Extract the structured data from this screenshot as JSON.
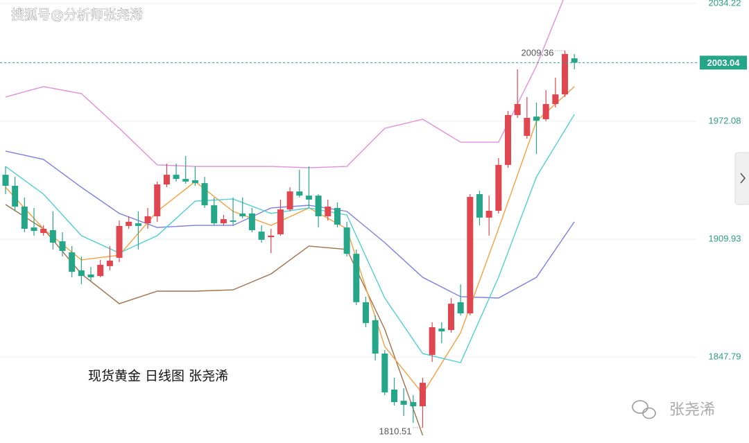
{
  "watermark": "搜狐号@分析师张尧浠",
  "brand": "张尧浠",
  "chart_data": {
    "type": "candlestick",
    "title": "现货黄金 日线图 张尧浠",
    "up_color": "#e0464f",
    "down_color": "#26a688",
    "tick_color": "#2f9c82",
    "top_tick_color": "#e0464f",
    "grid": true,
    "ylim": [
      1802.43,
      2036.07
    ],
    "yticks": [
      1847.79,
      1909.93,
      1972.08,
      2034.22
    ],
    "open": [
      1943.9,
      1938.1,
      1927.1,
      1916.1,
      1913.2,
      1914.7,
      1908.8,
      1903.0,
      1893.5,
      1891.3,
      1890.5,
      1895.7,
      1900.1,
      1916.9,
      1918.3,
      1918.3,
      1922.0,
      1938.8,
      1943.9,
      1941.7,
      1941.0,
      1939.5,
      1927.8,
      1918.3,
      1919.8,
      1923.5,
      1923.5,
      1913.9,
      1911.0,
      1912.5,
      1925.6,
      1935.1,
      1932.9,
      1932.9,
      1922.0,
      1926.4,
      1916.1,
      1902.2,
      1876.7,
      1867.2,
      1849.6,
      1830.6,
      1824.7,
      1824.0,
      1821.8,
      1848.9,
      1862.8,
      1862.0,
      1876.7,
      1870.8,
      1933.7,
      1921.3,
      1924.9,
      1949.1,
      1975.4,
      1964.4,
      1974.6,
      1973.2,
      1981.2,
      1986.3,
      2005.3
    ],
    "high": [
      1948.3,
      1942.8,
      1931.9,
      1926.4,
      1917.2,
      1924.6,
      1913.6,
      1906.3,
      1900.8,
      1895.3,
      1899.0,
      1906.3,
      1919.8,
      1922.0,
      1924.6,
      1926.4,
      1940.3,
      1949.8,
      1949.8,
      1953.8,
      1948.3,
      1942.8,
      1931.9,
      1922.7,
      1931.9,
      1931.9,
      1926.4,
      1917.2,
      1915.4,
      1930.8,
      1937.3,
      1946.5,
      1948.3,
      1933.7,
      1930.8,
      1929.3,
      1919.1,
      1904.5,
      1879.6,
      1869.7,
      1851.4,
      1836.8,
      1831.3,
      1827.7,
      1836.8,
      1866.1,
      1866.1,
      1878.9,
      1886.1,
      1933.7,
      1935.5,
      1932.9,
      1952.7,
      1977.6,
      1999.5,
      1984.9,
      1982.0,
      1988.5,
      1995.1,
      2009.36,
      2007.6
    ],
    "low": [
      1933.7,
      1924.6,
      1913.6,
      1911.8,
      1911.8,
      1904.5,
      1900.8,
      1889.8,
      1886.1,
      1888.0,
      1889.8,
      1893.5,
      1897.9,
      1915.4,
      1904.5,
      1915.4,
      1919.1,
      1937.3,
      1940.3,
      1939.2,
      1938.1,
      1926.4,
      1917.2,
      1917.2,
      1917.2,
      1920.9,
      1913.6,
      1908.1,
      1902.6,
      1911.8,
      1924.6,
      1931.9,
      1926.4,
      1916.1,
      1919.8,
      1916.1,
      1900.8,
      1875.2,
      1863.5,
      1845.9,
      1827.7,
      1822.2,
      1816.7,
      1813.1,
      1810.51,
      1845.2,
      1855.0,
      1860.6,
      1869.7,
      1869.7,
      1917.2,
      1911.8,
      1923.5,
      1947.6,
      1973.9,
      1962.9,
      1954.9,
      1972.1,
      1979.4,
      1984.9,
      1999.5
    ],
    "close": [
      1938.1,
      1927.1,
      1915.4,
      1914.3,
      1915.4,
      1908.1,
      1903.7,
      1892.7,
      1890.5,
      1889.8,
      1896.4,
      1898.6,
      1916.9,
      1919.1,
      1916.9,
      1922.0,
      1938.8,
      1943.9,
      1941.7,
      1940.3,
      1939.5,
      1927.8,
      1918.3,
      1920.5,
      1919.1,
      1922.0,
      1914.7,
      1909.6,
      1911.8,
      1925.6,
      1935.1,
      1932.9,
      1930.8,
      1922.0,
      1927.1,
      1917.6,
      1902.2,
      1876.7,
      1865.7,
      1849.6,
      1829.1,
      1824.0,
      1822.6,
      1821.8,
      1834.2,
      1863.5,
      1861.3,
      1875.9,
      1870.8,
      1932.2,
      1921.3,
      1924.9,
      1949.1,
      1975.4,
      1981.2,
      1973.9,
      1972.4,
      1981.2,
      1986.3,
      2007.6,
      2003.04
    ],
    "series": [
      {
        "color": "#e08fdb",
        "x": [
          0,
          4,
          8,
          12,
          16,
          20,
          24,
          28,
          32,
          36,
          40,
          44,
          48,
          52,
          56,
          60
        ],
        "values": [
          1984.9,
          1990.4,
          1986.7,
          1968.4,
          1949.1,
          1948.3,
          1948.3,
          1948.3,
          1947.6,
          1948.3,
          1968.4,
          1973.2,
          1961.1,
          1961.1,
          2001.3,
          2050.7
        ]
      },
      {
        "color": "#7b80e0",
        "x": [
          0,
          4,
          8,
          12,
          16,
          20,
          24,
          28,
          32,
          36,
          40,
          44,
          48,
          52,
          56,
          60
        ],
        "values": [
          1956.4,
          1952.0,
          1937.3,
          1923.5,
          1916.1,
          1917.2,
          1917.2,
          1926.4,
          1927.8,
          1924.6,
          1908.1,
          1889.8,
          1879.6,
          1878.9,
          1889.8,
          1919.1
        ]
      },
      {
        "color": "#a0704a",
        "x": [
          0,
          4,
          8,
          12,
          16,
          20,
          24,
          28,
          32,
          36,
          40,
          44,
          48,
          52,
          56,
          60
        ],
        "values": [
          1928.2,
          1915.4,
          1891.6,
          1875.9,
          1882.5,
          1882.5,
          1883.2,
          1891.6,
          1906.3,
          1904.5,
          1862.4,
          1806.5,
          null,
          null,
          null,
          null
        ]
      },
      {
        "color": "#f5a142",
        "x": [
          0,
          4,
          8,
          12,
          16,
          20,
          24,
          28,
          32,
          36,
          40,
          44,
          48,
          52,
          56,
          60
        ],
        "values": [
          1937.3,
          1915.4,
          1899.0,
          1901.5,
          1924.6,
          1940.3,
          1924.6,
          1917.2,
          1926.4,
          1915.4,
          1853.3,
          1828.4,
          1860.6,
          1915.4,
          1972.1,
          1990.4
        ]
      },
      {
        "color": "#4fcfd6",
        "x": [
          0,
          4,
          8,
          12,
          16,
          20,
          24,
          28,
          32,
          36,
          40,
          44,
          48,
          52,
          56,
          60
        ],
        "values": [
          1948.3,
          1933.7,
          1911.8,
          1902.6,
          1911.8,
          1930.0,
          1931.1,
          1923.5,
          1926.4,
          1922.7,
          1878.9,
          1849.6,
          1844.8,
          1889.8,
          1942.8,
          1975.7
        ]
      }
    ]
  }
}
